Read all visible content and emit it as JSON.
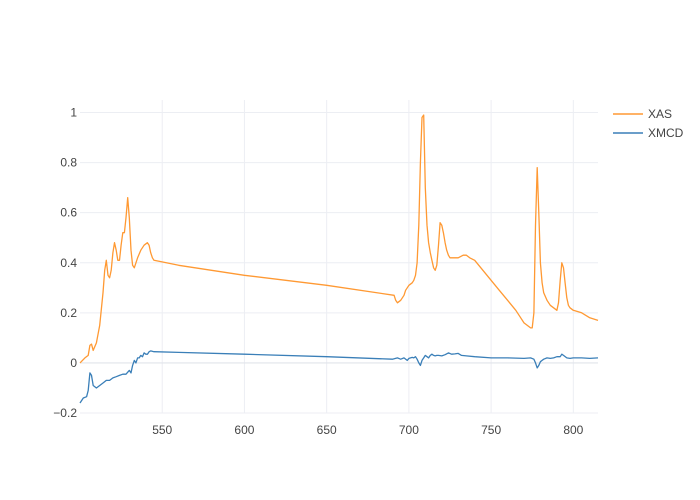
{
  "chart_data": {
    "type": "line",
    "title": "",
    "xlabel": "",
    "ylabel": "",
    "xlim": [
      500,
      815
    ],
    "ylim": [
      -0.2,
      1.05
    ],
    "xticks": [
      550,
      600,
      650,
      700,
      750,
      800
    ],
    "xtick_labels": [
      "550",
      "600",
      "650",
      "700",
      "750",
      "800"
    ],
    "yticks": [
      -0.2,
      0,
      0.2,
      0.4,
      0.6,
      0.8,
      1
    ],
    "ytick_labels": [
      "−0.2",
      "0",
      "0.2",
      "0.4",
      "0.6",
      "0.8",
      "1"
    ],
    "grid": true,
    "legend_position": "top-right",
    "series": [
      {
        "name": "XAS",
        "color": "#ff9933",
        "x": [
          500,
          503,
          505,
          506,
          507,
          508,
          510,
          512,
          514,
          515,
          516,
          517,
          518,
          519,
          520,
          521,
          522,
          523,
          524,
          525,
          526,
          527,
          528,
          529,
          530,
          531,
          532,
          533,
          535,
          537,
          539,
          541,
          542,
          543,
          544,
          545,
          560,
          600,
          650,
          691,
          692,
          693,
          695,
          697,
          698,
          700,
          702,
          703,
          704,
          705,
          706,
          707,
          708,
          709,
          710,
          711,
          712,
          713,
          714,
          715,
          716,
          717,
          718,
          719,
          720,
          721,
          722,
          723,
          724,
          725,
          727,
          730,
          733,
          735,
          737,
          740,
          745,
          750,
          755,
          760,
          765,
          768,
          770,
          772,
          774,
          775,
          776,
          777,
          778,
          779,
          780,
          781,
          782,
          784,
          786,
          788,
          790,
          791,
          792,
          793,
          794,
          795,
          796,
          797,
          798,
          800,
          805,
          810,
          815
        ],
        "y": [
          0.0,
          0.02,
          0.03,
          0.07,
          0.075,
          0.05,
          0.08,
          0.15,
          0.28,
          0.37,
          0.41,
          0.35,
          0.34,
          0.37,
          0.44,
          0.48,
          0.45,
          0.41,
          0.41,
          0.47,
          0.52,
          0.52,
          0.58,
          0.66,
          0.58,
          0.45,
          0.39,
          0.38,
          0.42,
          0.45,
          0.47,
          0.48,
          0.47,
          0.44,
          0.42,
          0.41,
          0.39,
          0.35,
          0.31,
          0.27,
          0.25,
          0.24,
          0.25,
          0.27,
          0.29,
          0.31,
          0.32,
          0.33,
          0.35,
          0.4,
          0.55,
          0.8,
          0.98,
          0.99,
          0.7,
          0.55,
          0.48,
          0.44,
          0.41,
          0.38,
          0.37,
          0.39,
          0.47,
          0.56,
          0.55,
          0.52,
          0.48,
          0.45,
          0.43,
          0.42,
          0.42,
          0.42,
          0.43,
          0.43,
          0.42,
          0.41,
          0.37,
          0.33,
          0.29,
          0.25,
          0.21,
          0.18,
          0.16,
          0.15,
          0.14,
          0.14,
          0.2,
          0.55,
          0.78,
          0.6,
          0.4,
          0.32,
          0.28,
          0.25,
          0.23,
          0.22,
          0.21,
          0.24,
          0.33,
          0.4,
          0.38,
          0.32,
          0.26,
          0.23,
          0.22,
          0.21,
          0.2,
          0.18,
          0.17
        ]
      },
      {
        "name": "XMCD",
        "color": "#3a7fb8",
        "x": [
          500,
          502,
          504,
          505,
          506,
          507,
          508,
          510,
          512,
          514,
          516,
          518,
          520,
          522,
          524,
          526,
          528,
          530,
          531,
          532,
          533,
          534,
          535,
          536,
          537,
          538,
          539,
          540,
          541,
          542,
          543,
          545,
          560,
          600,
          650,
          690,
          693,
          695,
          697,
          699,
          700,
          702,
          703,
          704,
          705,
          706,
          707,
          708,
          709,
          710,
          711,
          712,
          713,
          714,
          715,
          716,
          717,
          718,
          720,
          722,
          724,
          726,
          728,
          730,
          732,
          735,
          740,
          750,
          760,
          770,
          774,
          776,
          777,
          778,
          779,
          780,
          781,
          782,
          784,
          786,
          788,
          790,
          792,
          793,
          794,
          796,
          798,
          800,
          805,
          810,
          815
        ],
        "y": [
          -0.16,
          -0.14,
          -0.135,
          -0.11,
          -0.04,
          -0.05,
          -0.09,
          -0.1,
          -0.09,
          -0.08,
          -0.07,
          -0.07,
          -0.06,
          -0.055,
          -0.05,
          -0.045,
          -0.045,
          -0.03,
          -0.04,
          -0.01,
          0.01,
          0.0,
          0.02,
          0.02,
          0.03,
          0.025,
          0.04,
          0.035,
          0.035,
          0.045,
          0.048,
          0.045,
          0.042,
          0.035,
          0.025,
          0.015,
          0.02,
          0.015,
          0.02,
          0.01,
          0.018,
          0.022,
          0.02,
          0.025,
          0.015,
          0.0,
          -0.01,
          0.01,
          0.02,
          0.03,
          0.025,
          0.02,
          0.03,
          0.035,
          0.03,
          0.028,
          0.03,
          0.03,
          0.028,
          0.033,
          0.04,
          0.035,
          0.036,
          0.038,
          0.03,
          0.028,
          0.025,
          0.02,
          0.02,
          0.018,
          0.02,
          0.015,
          0.0,
          -0.02,
          -0.01,
          0.005,
          0.01,
          0.015,
          0.02,
          0.018,
          0.02,
          0.025,
          0.025,
          0.035,
          0.03,
          0.02,
          0.018,
          0.02,
          0.02,
          0.018,
          0.02
        ]
      }
    ]
  }
}
